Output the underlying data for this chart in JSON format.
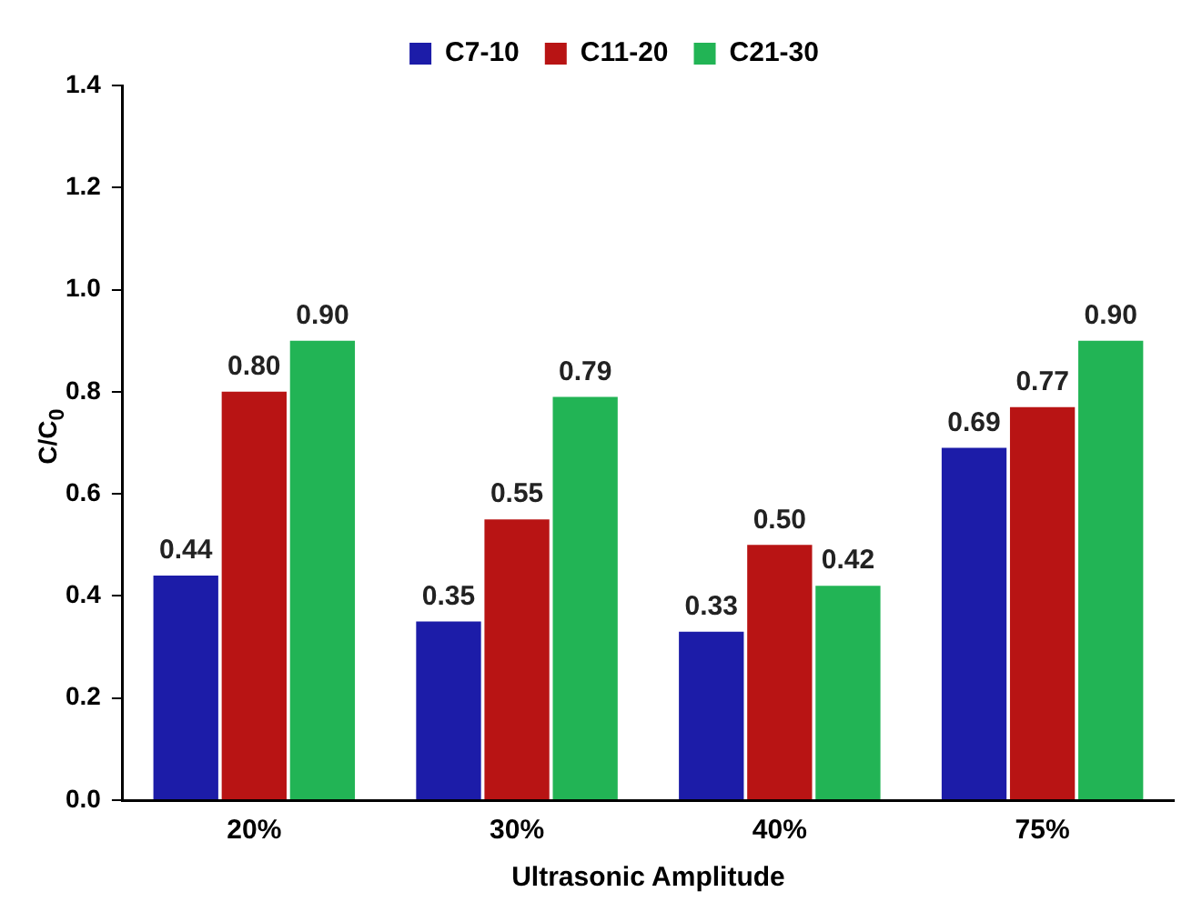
{
  "chart_data": {
    "type": "bar",
    "xlabel": "Ultrasonic Amplitude",
    "ylabel": "C/C$_{0}$",
    "categories": [
      "20%",
      "30%",
      "40%",
      "75%"
    ],
    "series": [
      {
        "name": "C7-10",
        "color": "#1c1ca8",
        "values": [
          0.44,
          0.35,
          0.33,
          0.69
        ],
        "value_labels": [
          "0.44",
          "0.35",
          "0.33",
          "0.69"
        ]
      },
      {
        "name": "C11-20",
        "color": "#b81414",
        "values": [
          0.8,
          0.55,
          0.5,
          0.77
        ],
        "value_labels": [
          "0.80",
          "0.55",
          "0.50",
          "0.77"
        ]
      },
      {
        "name": "C21-30",
        "color": "#22b455",
        "values": [
          0.9,
          0.79,
          0.42,
          0.9
        ],
        "value_labels": [
          "0.90",
          "0.79",
          "0.42",
          "0.90"
        ]
      }
    ],
    "ylim": [
      0,
      1.4
    ],
    "yticks": [
      {
        "value": 0,
        "label": "0.0"
      },
      {
        "value": 0.2,
        "label": "0.2"
      },
      {
        "value": 0.4,
        "label": "0.4"
      },
      {
        "value": 0.6,
        "label": "0.6"
      },
      {
        "value": 0.8,
        "label": "0.8"
      },
      {
        "value": 1.0,
        "label": "1.0"
      },
      {
        "value": 1.2,
        "label": "1.2"
      },
      {
        "value": 1.4,
        "label": "1.4"
      }
    ],
    "grid": false,
    "legend": "top"
  }
}
